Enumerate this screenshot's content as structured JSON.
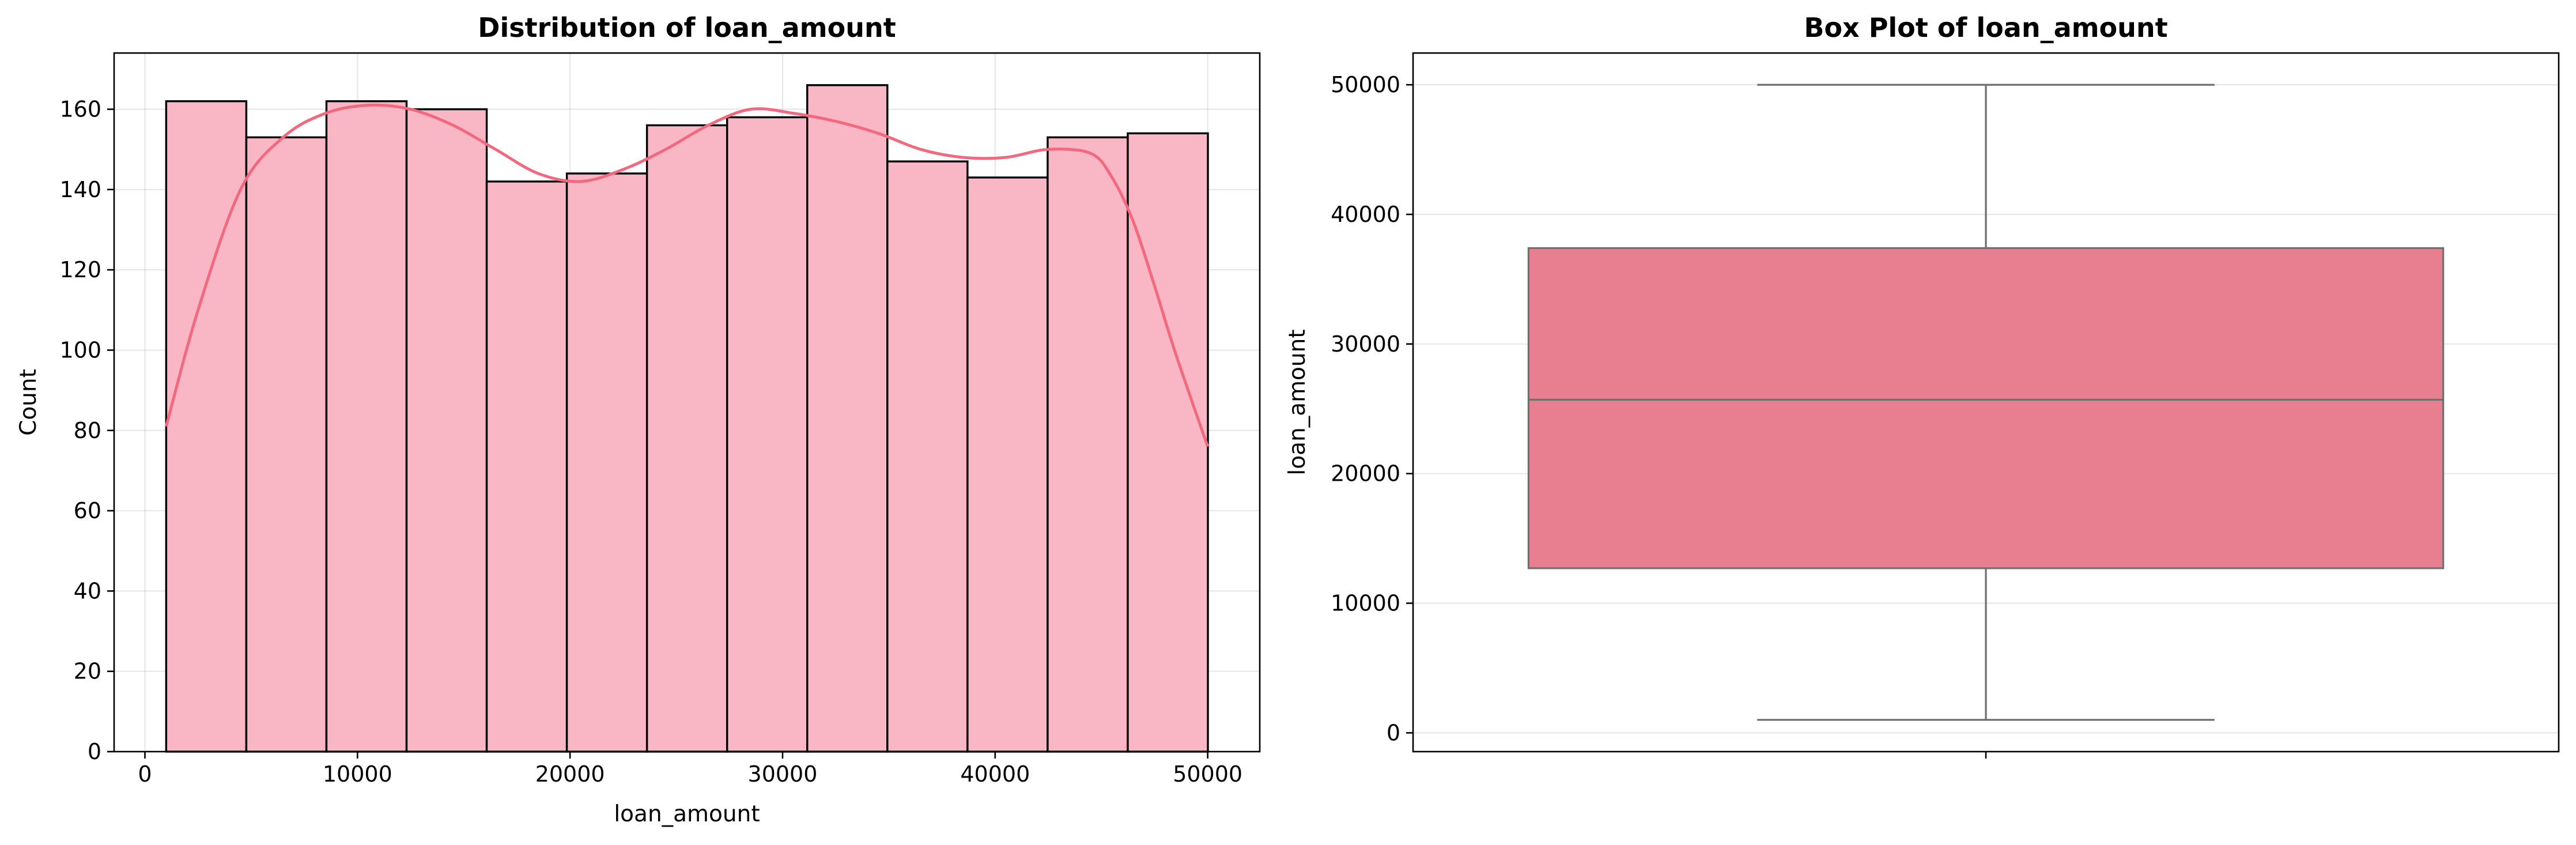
{
  "colors": {
    "bar_fill": "#f9b6c4",
    "bar_edge": "#000000",
    "kde_line": "#f2697f",
    "box_fill": "#e77f91",
    "box_line": "#6f6f6f"
  },
  "chart_data": [
    {
      "type": "bar",
      "subtype": "histogram",
      "title": "Distribution of loan_amount",
      "xlabel": "loan_amount",
      "ylabel": "Count",
      "xlim": [
        -1450,
        52450
      ],
      "ylim": [
        0,
        174
      ],
      "xticks": [
        0,
        10000,
        20000,
        30000,
        40000,
        50000
      ],
      "yticks": [
        0,
        20,
        40,
        60,
        80,
        100,
        120,
        140,
        160
      ],
      "bin_edges": [
        1000,
        4770,
        8540,
        12310,
        16080,
        19850,
        23620,
        27390,
        31160,
        34930,
        38700,
        42470,
        46240,
        50010
      ],
      "values": [
        162,
        153,
        162,
        160,
        142,
        144,
        156,
        158,
        166,
        147,
        143,
        153,
        154
      ],
      "grid": true,
      "kde": {
        "x": [
          1000,
          2500,
          4500,
          6500,
          8500,
          10500,
          12500,
          14500,
          16500,
          18500,
          20500,
          22500,
          24500,
          26500,
          28500,
          30500,
          32500,
          34500,
          36500,
          38500,
          40500,
          42500,
          44500,
          45500,
          46500,
          47500,
          48500,
          50000
        ],
        "y": [
          81,
          110,
          140,
          153,
          159,
          161,
          160,
          156,
          150,
          144,
          142,
          145,
          150,
          156,
          160,
          159,
          157,
          154,
          150,
          148,
          148,
          150,
          149,
          143,
          132,
          116,
          99,
          76
        ]
      }
    },
    {
      "type": "box",
      "title": "Box Plot of loan_amount",
      "xlabel": "",
      "ylabel": "loan_amount",
      "ylim": [
        -1450,
        52450
      ],
      "yticks": [
        0,
        10000,
        20000,
        30000,
        40000,
        50000
      ],
      "whisker_low": 1000,
      "q1": 12700,
      "median": 25700,
      "q3": 37400,
      "whisker_high": 50000,
      "grid": true
    }
  ]
}
